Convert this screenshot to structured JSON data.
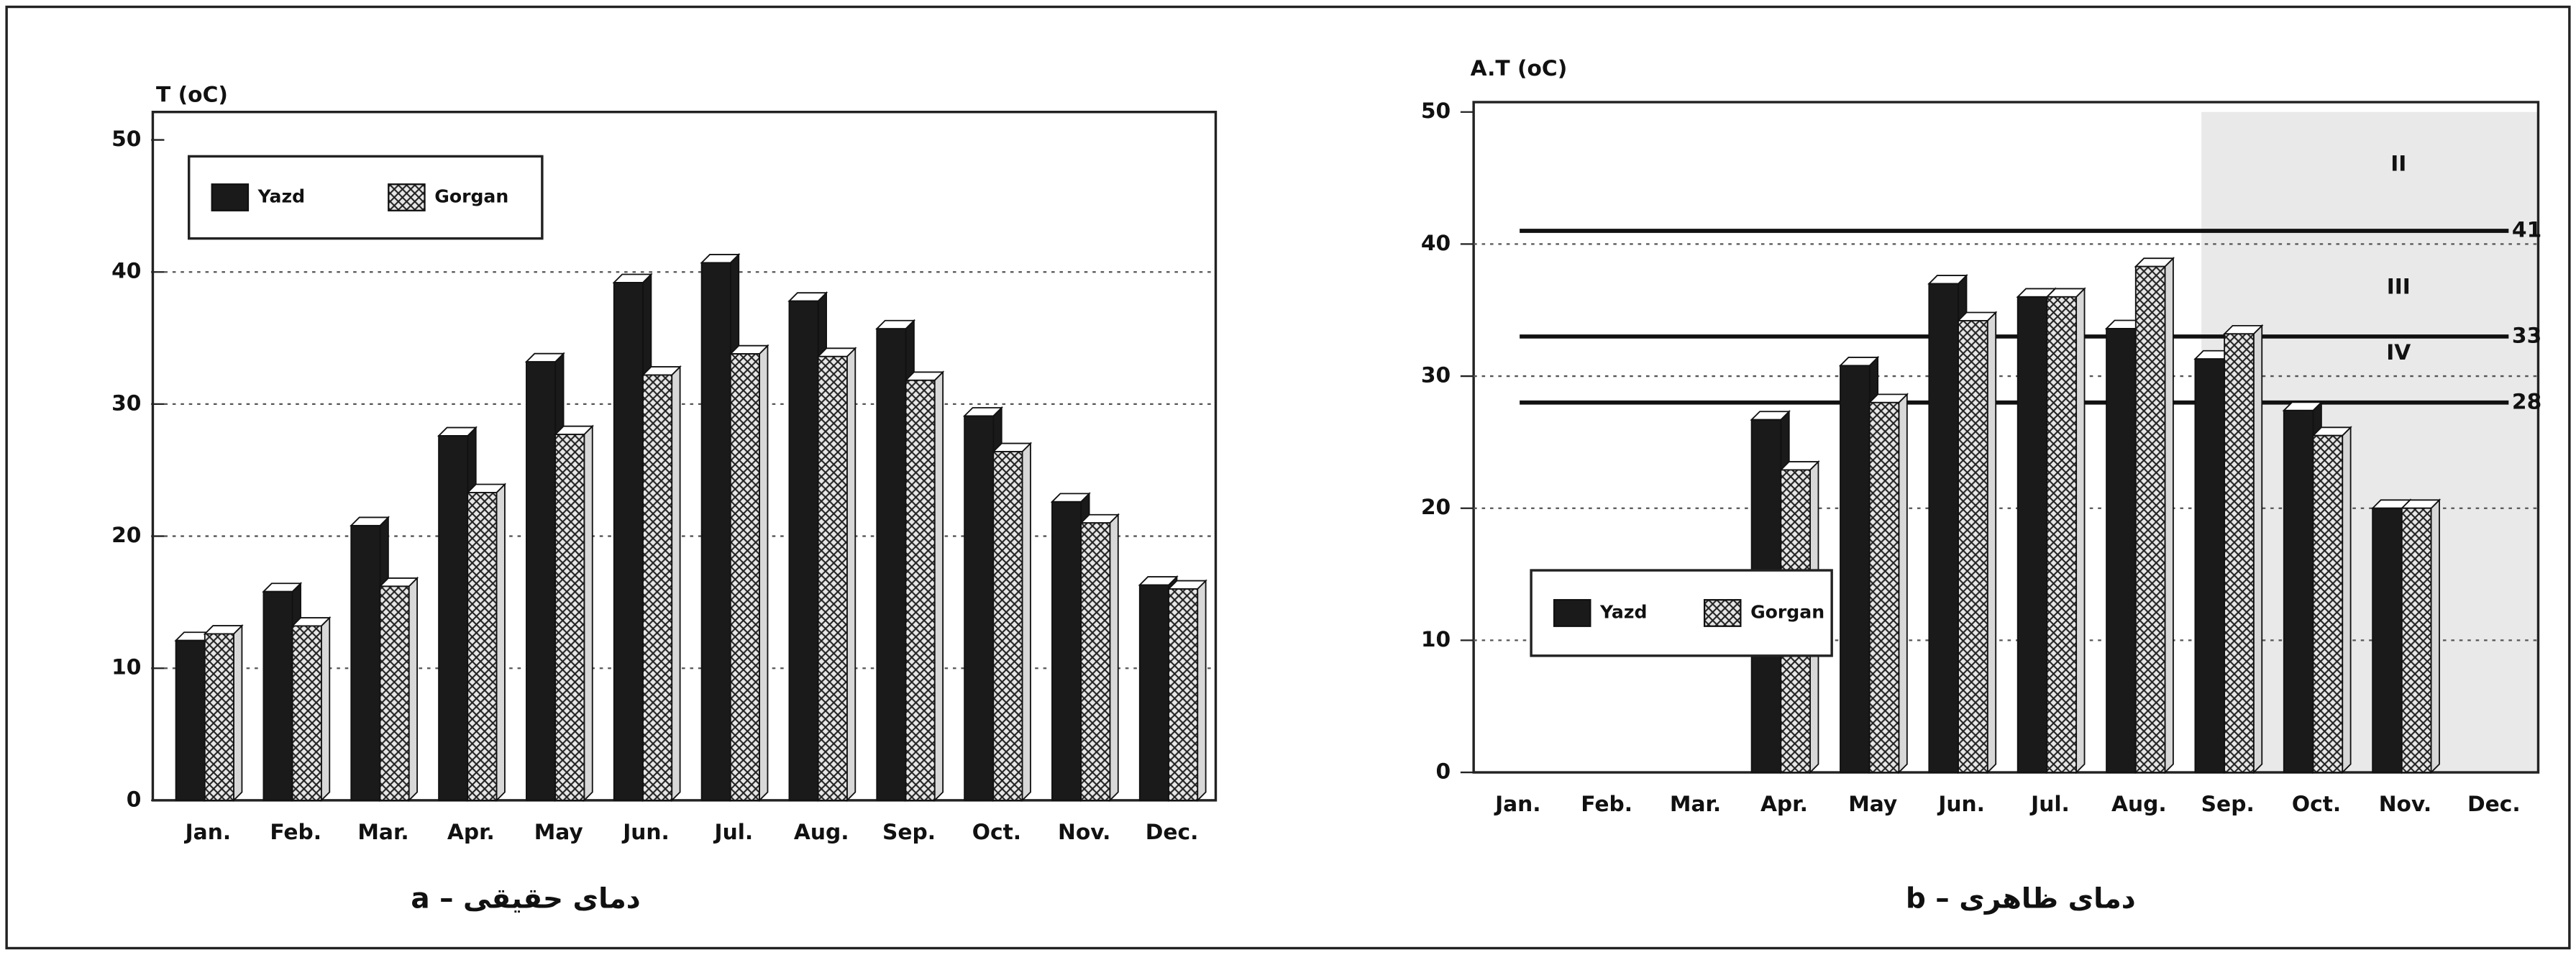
{
  "chart_data": [
    {
      "type": "bar",
      "ylabel": "T (oC)",
      "caption": "a – دمای حقیقی",
      "categories": [
        "Jan.",
        "Feb.",
        "Mar.",
        "Apr.",
        "May",
        "Jun.",
        "Jul.",
        "Aug.",
        "Sep.",
        "Oct.",
        "Nov.",
        "Dec."
      ],
      "series": [
        {
          "name": "Yazd",
          "color": "#1a1a1a",
          "hatched": false,
          "values": [
            12.1,
            15.8,
            20.8,
            27.6,
            33.2,
            39.2,
            40.7,
            37.8,
            35.7,
            29.1,
            22.6,
            16.3
          ]
        },
        {
          "name": "Gorgan",
          "color": "#d8d8d8",
          "hatched": true,
          "values": [
            12.6,
            13.2,
            16.2,
            23.3,
            27.7,
            32.2,
            33.8,
            33.6,
            31.8,
            26.4,
            21.0,
            16.0
          ]
        }
      ],
      "ylim": [
        0,
        50
      ],
      "yticks": [
        0,
        10,
        20,
        30,
        40,
        50
      ],
      "grid": true
    },
    {
      "type": "bar",
      "ylabel": "A.T (oC)",
      "caption": "b – دمای ظاهری",
      "categories": [
        "Jan.",
        "Feb.",
        "Mar.",
        "Apr.",
        "May",
        "Jun.",
        "Jul.",
        "Aug.",
        "Sep.",
        "Oct.",
        "Nov.",
        "Dec."
      ],
      "series": [
        {
          "name": "Yazd",
          "color": "#1a1a1a",
          "hatched": false,
          "values": [
            null,
            null,
            null,
            26.7,
            30.8,
            37.0,
            36.0,
            33.6,
            31.3,
            27.4,
            20.0,
            null
          ]
        },
        {
          "name": "Gorgan",
          "color": "#d8d8d8",
          "hatched": true,
          "values": [
            null,
            null,
            null,
            22.9,
            28.0,
            34.2,
            36.0,
            38.3,
            33.2,
            25.5,
            20.0,
            null
          ]
        }
      ],
      "ylim": [
        0,
        50
      ],
      "yticks": [
        0,
        10,
        20,
        30,
        40,
        50
      ],
      "grid": true,
      "reference_lines": [
        41,
        33,
        28
      ],
      "zone_labels": [
        "II",
        "III",
        "IV"
      ]
    }
  ]
}
